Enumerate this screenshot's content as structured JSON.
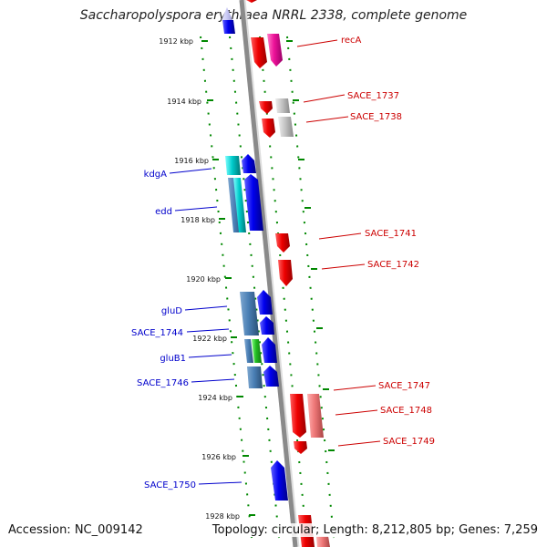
{
  "title": "Saccharopolyspora erythraea NRRL 2338, complete genome",
  "footer": {
    "accession": "Accession: NC_009142",
    "summary": "Topology: circular; Length: 8,212,805 bp; Genes: 7,259"
  },
  "ticks": [
    "1912 kbp",
    "1914 kbp",
    "1916 kbp",
    "1918 kbp",
    "1920 kbp",
    "1922 kbp",
    "1924 kbp",
    "1926 kbp",
    "1928 kbp"
  ],
  "left_labels": [
    "kdgA",
    "edd",
    "gluD",
    "SACE_1744",
    "gluB1",
    "SACE_1746",
    "SACE_1750"
  ],
  "right_labels": [
    "recA",
    "SACE_1737",
    "SACE_1738",
    "SACE_1741",
    "SACE_1742",
    "SACE_1747",
    "SACE_1748",
    "SACE_1749"
  ],
  "colors": {
    "forward_gene": "#0000ee",
    "reverse_gene": "#ee0000",
    "backbone": "#888888",
    "tick_marks": "#008800",
    "left_label": "#0000cc",
    "right_label": "#cc0000"
  }
}
